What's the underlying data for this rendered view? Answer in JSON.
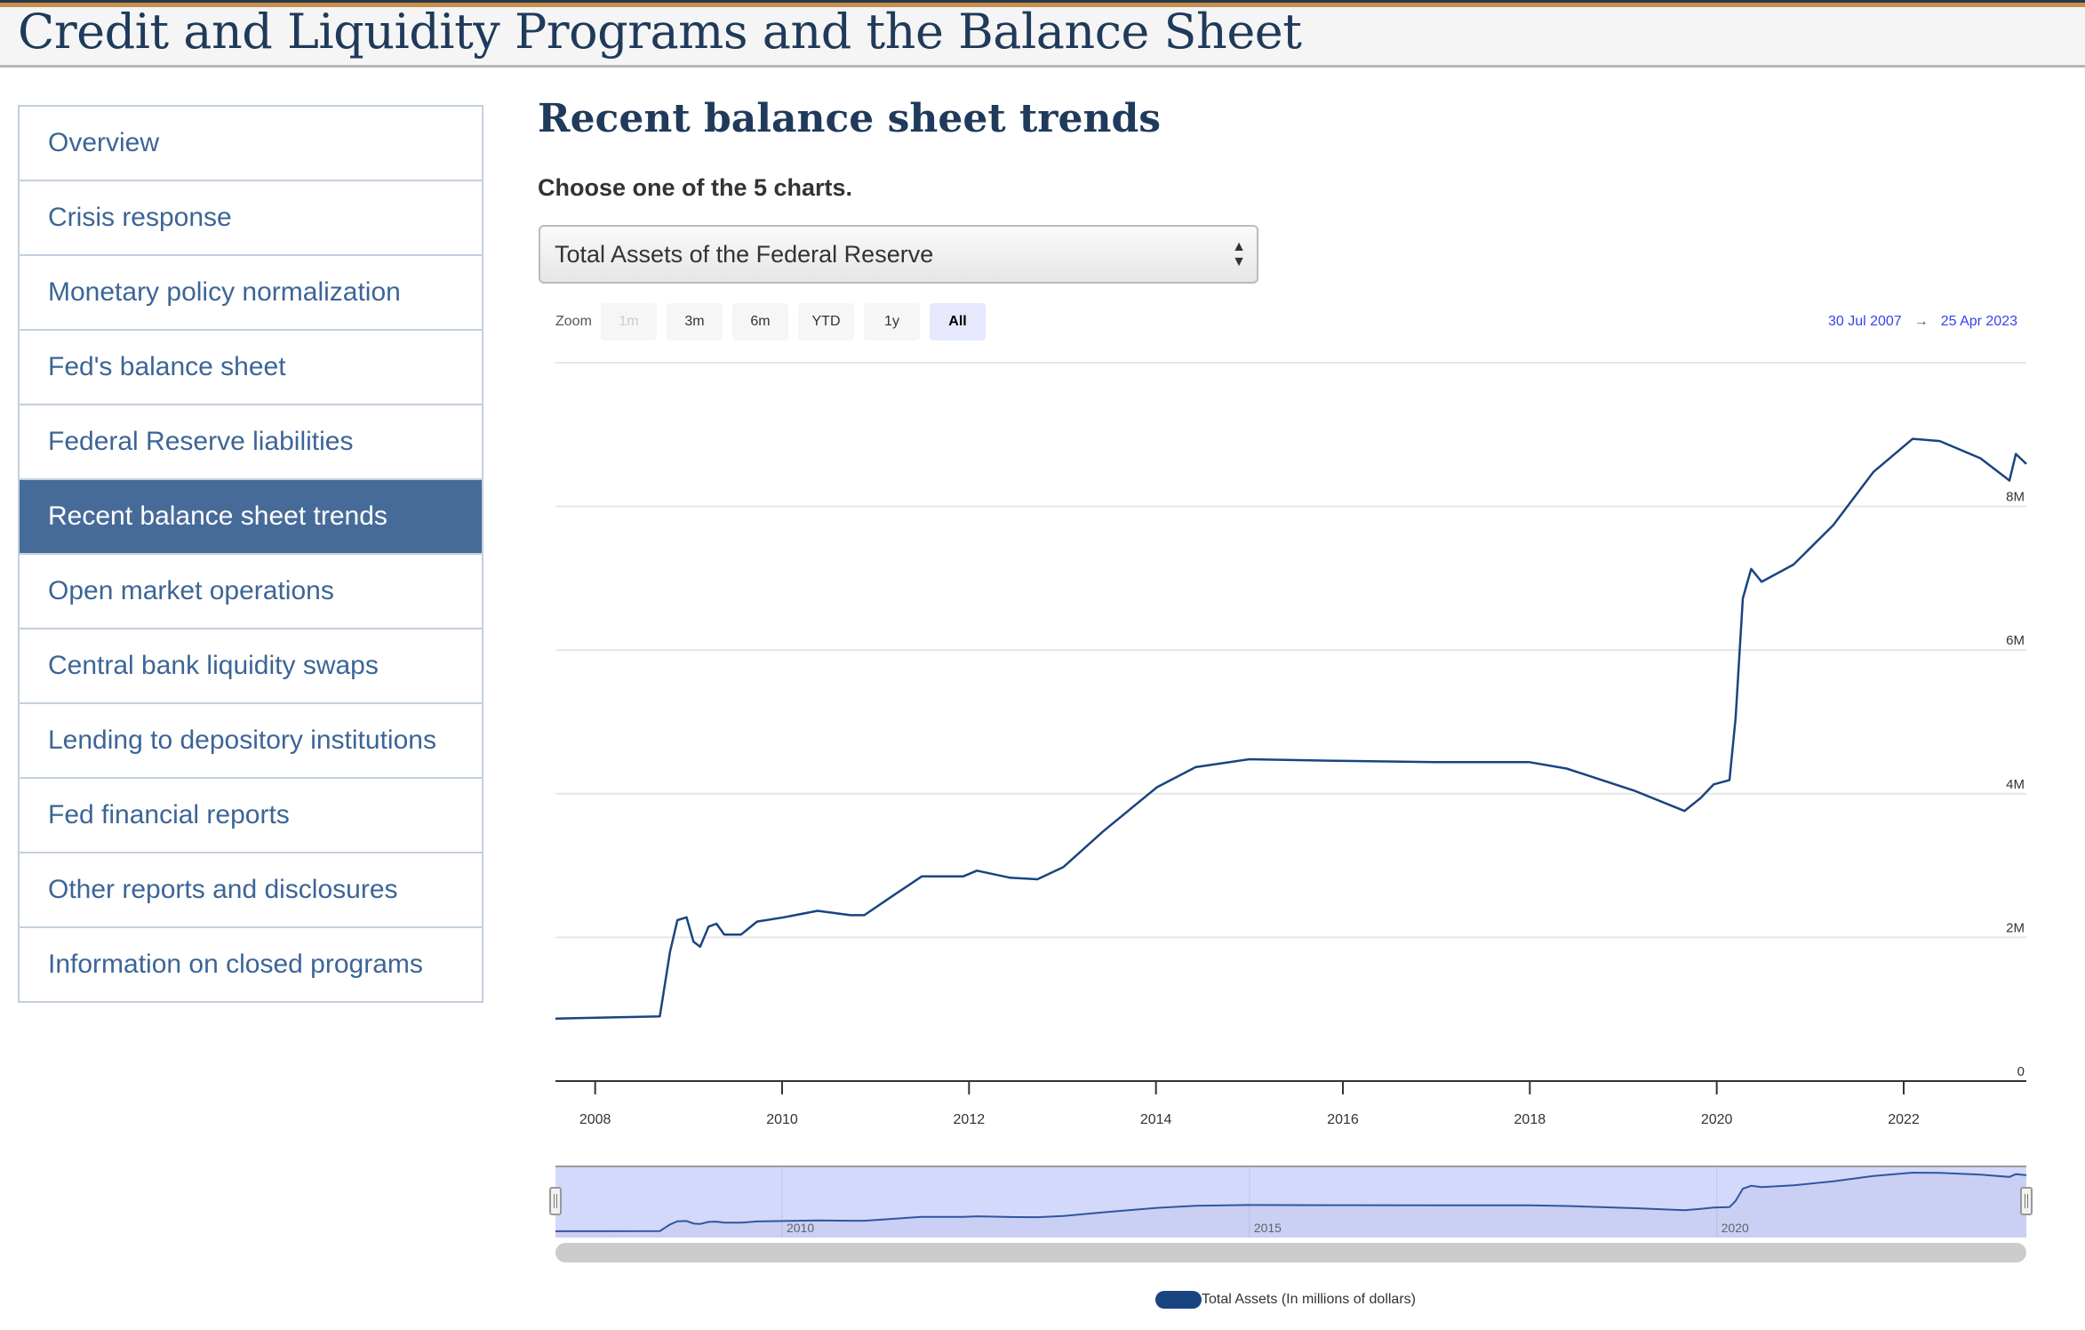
{
  "header": {
    "title": "Credit and Liquidity Programs and the Balance Sheet"
  },
  "sidebar": {
    "items": [
      {
        "label": "Overview"
      },
      {
        "label": "Crisis response"
      },
      {
        "label": "Monetary policy normalization"
      },
      {
        "label": "Fed's balance sheet"
      },
      {
        "label": "Federal Reserve liabilities"
      },
      {
        "label": "Recent balance sheet trends",
        "active": true
      },
      {
        "label": "Open market operations"
      },
      {
        "label": "Central bank liquidity swaps"
      },
      {
        "label": "Lending to depository institutions"
      },
      {
        "label": "Fed financial reports"
      },
      {
        "label": "Other reports and disclosures"
      },
      {
        "label": "Information on closed programs"
      }
    ]
  },
  "main": {
    "title": "Recent balance sheet trends",
    "prompt": "Choose one of the 5 charts.",
    "select_value": "Total Assets of the Federal Reserve",
    "zoom_label": "Zoom",
    "zoom_buttons": [
      {
        "label": "1m",
        "state": "disabled"
      },
      {
        "label": "3m"
      },
      {
        "label": "6m"
      },
      {
        "label": "YTD"
      },
      {
        "label": "1y"
      },
      {
        "label": "All",
        "state": "selected"
      }
    ],
    "range_from": "30 Jul 2007",
    "range_arrow": "→",
    "range_to": "25 Apr 2023"
  },
  "chart_data": {
    "type": "line",
    "title": "",
    "xlabel": "",
    "ylabel": "",
    "xlim": [
      "2007-07-30",
      "2023-04-25"
    ],
    "ylim": [
      0,
      10000000
    ],
    "y_ticks": [
      {
        "v": 0,
        "label": "0"
      },
      {
        "v": 2000000,
        "label": "2M"
      },
      {
        "v": 4000000,
        "label": "4M"
      },
      {
        "v": 6000000,
        "label": "6M"
      },
      {
        "v": 8000000,
        "label": "8M"
      }
    ],
    "x_ticks": [
      "2008",
      "2010",
      "2012",
      "2014",
      "2016",
      "2018",
      "2020",
      "2022"
    ],
    "navigator_ticks": [
      "2010",
      "2015",
      "2020"
    ],
    "grid": true,
    "line_color": "#1a4480",
    "legend_position": "bottom",
    "series": [
      {
        "name": "Total Assets (In millions of dollars)",
        "points": [
          [
            "2007-07-30",
            870000
          ],
          [
            "2008-09-10",
            900000
          ],
          [
            "2008-10-20",
            1800000
          ],
          [
            "2008-11-18",
            2240000
          ],
          [
            "2008-12-24",
            2280000
          ],
          [
            "2009-01-20",
            1940000
          ],
          [
            "2009-02-15",
            1870000
          ],
          [
            "2009-03-20",
            2150000
          ],
          [
            "2009-04-20",
            2190000
          ],
          [
            "2009-05-20",
            2040000
          ],
          [
            "2009-07-25",
            2040000
          ],
          [
            "2009-09-25",
            2220000
          ],
          [
            "2010-01-08",
            2280000
          ],
          [
            "2010-05-20",
            2370000
          ],
          [
            "2010-09-25",
            2310000
          ],
          [
            "2010-11-18",
            2310000
          ],
          [
            "2011-03-01",
            2560000
          ],
          [
            "2011-07-01",
            2850000
          ],
          [
            "2011-12-10",
            2850000
          ],
          [
            "2012-02-01",
            2930000
          ],
          [
            "2012-06-10",
            2830000
          ],
          [
            "2012-09-25",
            2810000
          ],
          [
            "2013-01-05",
            2980000
          ],
          [
            "2013-06-10",
            3480000
          ],
          [
            "2014-01-05",
            4090000
          ],
          [
            "2014-06-05",
            4370000
          ],
          [
            "2015-01-01",
            4480000
          ],
          [
            "2015-11-05",
            4460000
          ],
          [
            "2016-12-28",
            4440000
          ],
          [
            "2017-12-28",
            4440000
          ],
          [
            "2018-05-25",
            4350000
          ],
          [
            "2019-02-15",
            4040000
          ],
          [
            "2019-08-28",
            3760000
          ],
          [
            "2019-10-30",
            3940000
          ],
          [
            "2019-12-20",
            4130000
          ],
          [
            "2020-02-20",
            4190000
          ],
          [
            "2020-03-15",
            5060000
          ],
          [
            "2020-04-12",
            6720000
          ],
          [
            "2020-05-15",
            7130000
          ],
          [
            "2020-06-25",
            6950000
          ],
          [
            "2020-10-28",
            7190000
          ],
          [
            "2021-04-01",
            7740000
          ],
          [
            "2021-09-05",
            8480000
          ],
          [
            "2022-02-05",
            8940000
          ],
          [
            "2022-05-22",
            8910000
          ],
          [
            "2022-10-28",
            8670000
          ],
          [
            "2023-02-18",
            8360000
          ],
          [
            "2023-03-15",
            8730000
          ],
          [
            "2023-04-25",
            8590000
          ]
        ]
      }
    ]
  }
}
